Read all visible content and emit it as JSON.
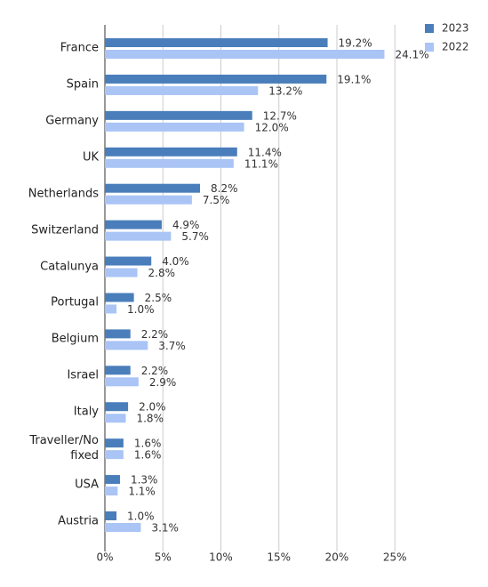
{
  "chart_data": {
    "type": "barh",
    "categories": [
      "France",
      "Spain",
      "Germany",
      "UK",
      "Netherlands",
      "Switzerland",
      "Catalunya",
      "Portugal",
      "Belgium",
      "Israel",
      "Italy",
      "Traveller/No fixed",
      "USA",
      "Austria"
    ],
    "series": [
      {
        "name": "2023",
        "color": "#4a7ebb",
        "values": [
          19.2,
          19.1,
          12.7,
          11.4,
          8.2,
          4.9,
          4.0,
          2.5,
          2.2,
          2.2,
          2.0,
          1.6,
          1.3,
          1.0
        ],
        "value_labels": [
          "19.2%",
          "19.1%",
          "12.7%",
          "11.4%",
          "8.2%",
          "4.9%",
          "4.0%",
          "2.5%",
          "2.2%",
          "2.2%",
          "2.0%",
          "1.6%",
          "1.3%",
          "1.0%"
        ]
      },
      {
        "name": "2022",
        "color": "#a9c4f5",
        "values": [
          24.1,
          13.2,
          12.0,
          11.1,
          7.5,
          5.7,
          2.8,
          1.0,
          3.7,
          2.9,
          1.8,
          1.6,
          1.1,
          3.1
        ],
        "value_labels": [
          "24.1%",
          "13.2%",
          "12.0%",
          "11.1%",
          "7.5%",
          "5.7%",
          "2.8%",
          "1.0%",
          "3.7%",
          "2.9%",
          "1.8%",
          "1.6%",
          "1.1%",
          "3.1%"
        ]
      }
    ],
    "xlim": [
      0,
      30
    ],
    "xticks": [
      {
        "value": 0,
        "label": "0%"
      },
      {
        "value": 5,
        "label": "5%"
      },
      {
        "value": 10,
        "label": "10%"
      },
      {
        "value": 15,
        "label": "15%"
      },
      {
        "value": 20,
        "label": "20%"
      },
      {
        "value": 25,
        "label": "25%"
      }
    ],
    "grid": true,
    "legend": "top-right"
  }
}
